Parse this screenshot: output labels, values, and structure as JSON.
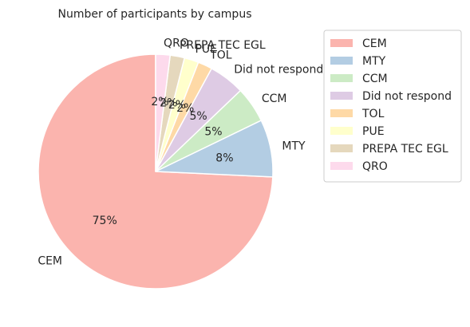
{
  "chart_data": {
    "type": "pie",
    "title": "Number of participants by campus",
    "categories": [
      "CEM",
      "MTY",
      "CCM",
      "Did not respond",
      "TOL",
      "PUE",
      "PREPA TEC EGL",
      "QRO"
    ],
    "values": [
      75,
      8,
      5,
      5,
      2,
      2,
      2,
      2
    ],
    "value_labels": [
      "75%",
      "8%",
      "5%",
      "5%",
      "2%",
      "2%",
      "2%",
      "2%"
    ],
    "colors": [
      "#fbb4ae",
      "#b3cde3",
      "#ccebc5",
      "#decbe4",
      "#fed9a6",
      "#ffffcc",
      "#e5d8bd",
      "#fddaec"
    ],
    "start_angle_deg": 90,
    "direction": "counterclockwise",
    "legend": "right"
  }
}
